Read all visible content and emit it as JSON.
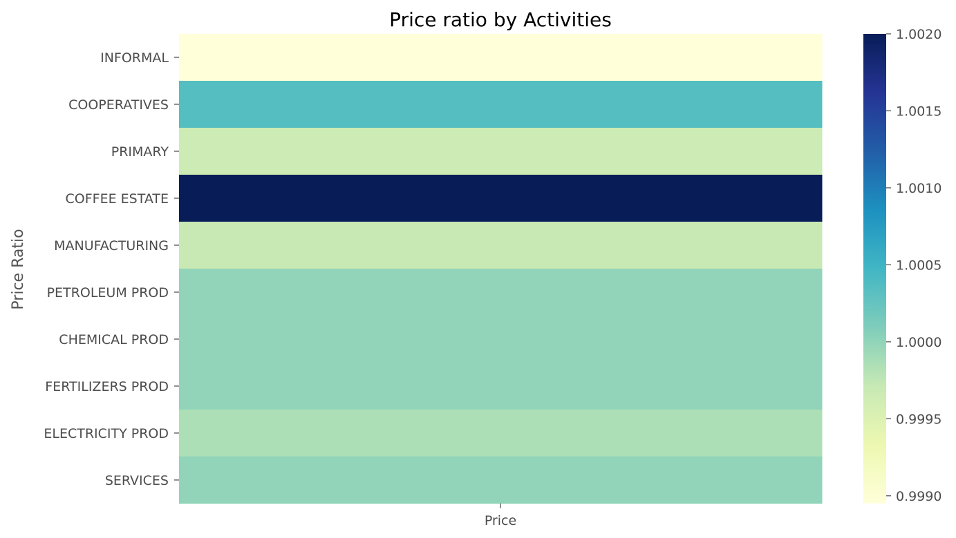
{
  "chart_data": {
    "type": "heatmap",
    "title": "Price ratio by Activities",
    "ylabel": "Price Ratio",
    "xlabel": "",
    "x_categories": [
      "Price"
    ],
    "y_categories": [
      "INFORMAL",
      "COOPERATIVES",
      "PRIMARY",
      "COFFEE ESTATE",
      "MANUFACTURING",
      "PETROLEUM PROD",
      "CHEMICAL PROD",
      "FERTILIZERS PROD",
      "ELECTRICITY PROD",
      "SERVICES"
    ],
    "values": [
      [
        0.99895
      ],
      [
        1.00035
      ],
      [
        0.99965
      ],
      [
        1.002
      ],
      [
        0.9997
      ],
      [
        1.0
      ],
      [
        1.0
      ],
      [
        1.0
      ],
      [
        0.99985
      ],
      [
        1.0
      ]
    ],
    "colormap": "YlGnBu",
    "colorbar": {
      "range": [
        0.99895,
        1.002
      ],
      "ticks": [
        0.999,
        0.9995,
        1.0,
        1.0005,
        1.001,
        1.0015,
        1.002
      ],
      "tick_labels": [
        "0.9990",
        "0.9995",
        "1.0000",
        "1.0005",
        "1.0010",
        "1.0015",
        "1.0020"
      ]
    },
    "legend": "colorbar-right",
    "grid": false
  }
}
